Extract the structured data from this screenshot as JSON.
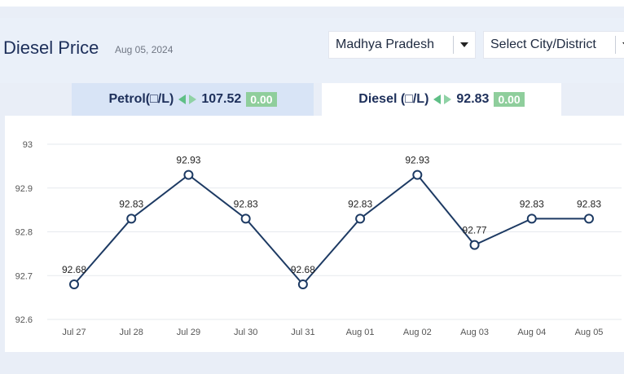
{
  "header": {
    "title": "Diesel Price",
    "date": "Aug 05, 2024"
  },
  "filters": {
    "state": "Madhya Pradesh",
    "city": "Select City/District"
  },
  "tabs": [
    {
      "label": "Petrol(□/L)",
      "price": "107.52",
      "change": "0.00",
      "active": false
    },
    {
      "label": "Diesel (□/L)",
      "price": "92.83",
      "change": "0.00",
      "active": true
    }
  ],
  "colors": {
    "line": "#1d3a63",
    "grid": "#e6e9ee",
    "badge": "#8fce9c",
    "arrow": "#5fbf86"
  },
  "chart_data": {
    "type": "line",
    "categories": [
      "Jul 27",
      "Jul 28",
      "Jul 29",
      "Jul 30",
      "Jul 31",
      "Aug 01",
      "Aug 02",
      "Aug 03",
      "Aug 04",
      "Aug 05"
    ],
    "series": [
      {
        "values": [
          92.68,
          92.83,
          92.93,
          92.83,
          92.68,
          92.83,
          92.93,
          92.77,
          92.83,
          92.83
        ]
      }
    ],
    "data_labels": [
      "92.68",
      "92.83",
      "92.93",
      "92.83",
      "92.68",
      "92.83",
      "92.93",
      "92.77",
      "92.83",
      "92.83"
    ],
    "y_ticks": [
      "93",
      "92.9",
      "92.8",
      "92.7",
      "92.6"
    ],
    "ylim": [
      92.6,
      93
    ],
    "grid": true,
    "legend": "none"
  }
}
